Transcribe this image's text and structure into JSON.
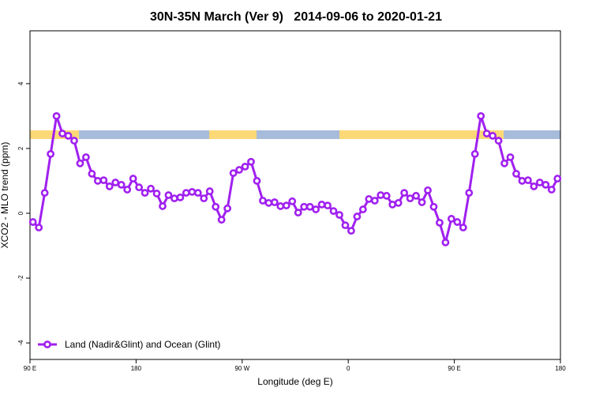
{
  "chart_data": {
    "type": "line",
    "title": "30N-35N March (Ver 9)   2014-09-06 to 2020-01-21",
    "x_label": "Longitude (deg E)",
    "y_label": "XCO2 - MLO trend (ppm)",
    "xlim": [
      90,
      540
    ],
    "ylim": [
      -4.51,
      5.63
    ],
    "xticks": [
      {
        "value": 90,
        "label": "90 E"
      },
      {
        "value": 180,
        "label": "180"
      },
      {
        "value": 270,
        "label": "90 W"
      },
      {
        "value": 360,
        "label": "0"
      },
      {
        "value": 450,
        "label": "90 E"
      },
      {
        "value": 540,
        "label": "180"
      }
    ],
    "yticks": [
      -4,
      -2,
      0,
      2,
      4
    ],
    "legend": "bottom-left",
    "x": [
      92.5,
      97.5,
      102.5,
      107.5,
      112.5,
      117.5,
      122.5,
      127.5,
      132.5,
      137.5,
      142.5,
      147.5,
      152.5,
      157.5,
      162.5,
      167.5,
      172.5,
      177.5,
      182.5,
      187.5,
      192.5,
      197.5,
      202.5,
      207.5,
      212.5,
      217.5,
      222.5,
      227.5,
      232.5,
      237.5,
      242.5,
      247.5,
      252.5,
      257.5,
      262.5,
      267.5,
      272.5,
      277.5,
      282.5,
      287.5,
      292.5,
      297.5,
      302.5,
      307.5,
      312.5,
      317.5,
      322.5,
      327.5,
      332.5,
      337.5,
      342.5,
      347.5,
      352.5,
      357.5,
      362.5,
      367.5,
      372.5,
      377.5,
      382.5,
      387.5,
      392.5,
      397.5,
      402.5,
      407.5,
      412.5,
      417.5,
      422.5,
      427.5,
      432.5,
      437.5,
      442.5,
      447.5,
      452.5,
      457.5,
      462.5,
      467.5,
      472.5,
      477.5,
      482.5,
      487.5,
      492.5,
      497.5,
      502.5,
      507.5,
      512.5,
      517.5,
      522.5,
      527.5,
      532.5,
      537.5
    ],
    "series": [
      {
        "name": "Land (Nadir&Glint) and Ocean (Glint)",
        "color": "#a020f0",
        "values": [
          -0.27,
          -0.44,
          0.63,
          1.83,
          3.0,
          2.46,
          2.39,
          2.24,
          1.54,
          1.73,
          1.22,
          1.0,
          1.02,
          0.83,
          0.95,
          0.88,
          0.73,
          1.07,
          0.8,
          0.63,
          0.76,
          0.61,
          0.22,
          0.56,
          0.46,
          0.49,
          0.63,
          0.66,
          0.63,
          0.46,
          0.68,
          0.2,
          -0.2,
          0.15,
          1.24,
          1.34,
          1.44,
          1.59,
          1.0,
          0.39,
          0.32,
          0.34,
          0.22,
          0.24,
          0.37,
          0.02,
          0.2,
          0.2,
          0.12,
          0.27,
          0.24,
          0.07,
          -0.05,
          -0.37,
          -0.54,
          -0.1,
          0.12,
          0.44,
          0.39,
          0.56,
          0.54,
          0.27,
          0.32,
          0.63,
          0.46,
          0.54,
          0.34,
          0.71,
          0.2,
          -0.29,
          -0.9,
          -0.17,
          -0.27,
          -0.44,
          0.63,
          1.83,
          3.0,
          2.46,
          2.39,
          2.24,
          1.54,
          1.73,
          1.22,
          1.0,
          1.02,
          0.83,
          0.95,
          0.88,
          0.73,
          1.07
        ]
      }
    ]
  }
}
